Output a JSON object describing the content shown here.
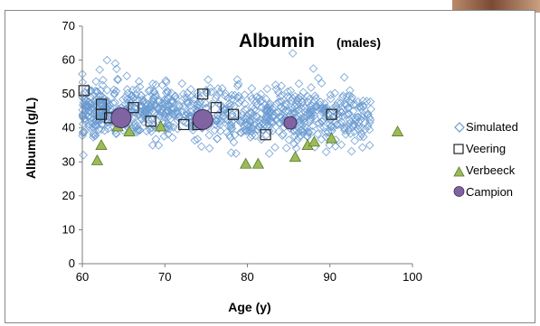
{
  "chart_data": {
    "type": "scatter",
    "title": "Albumin",
    "subtitle": "(males)",
    "xlabel": "Age (y)",
    "ylabel": "Albumin (g/L)",
    "xlim": [
      60,
      100
    ],
    "ylim": [
      0,
      70
    ],
    "x_ticks": [
      "60",
      "70",
      "80",
      "90",
      "100"
    ],
    "y_ticks": [
      "0",
      "10",
      "20",
      "30",
      "40",
      "50",
      "60",
      "70"
    ],
    "grid": false,
    "legend_position": "right",
    "series": [
      {
        "name": "Simulated",
        "marker": "diamond-open",
        "color": "#6a9bd1",
        "x_range": [
          60,
          95
        ],
        "y_mean": 45,
        "y_sd": 4,
        "y_range": [
          32,
          62
        ],
        "n_points_approx": 900,
        "highlight_points": {
          "x": [
            63,
            64,
            85.5,
            88
          ],
          "y": [
            60,
            59,
            62,
            57.5
          ]
        }
      },
      {
        "name": "Veering",
        "marker": "square-open",
        "color": "#222222",
        "x": [
          60.2,
          62.3,
          62.3,
          63.3,
          64.7,
          66.2,
          68.3,
          72.3,
          74.0,
          74.6,
          76.2,
          78.3,
          82.2,
          90.2
        ],
        "y": [
          51,
          47,
          44,
          43,
          43,
          46,
          42,
          41,
          41,
          50,
          46,
          44,
          38,
          44
        ]
      },
      {
        "name": "Verbeeck",
        "marker": "triangle",
        "color": "#9bbb59",
        "x": [
          61.8,
          62.3,
          64.3,
          65.7,
          69.5,
          79.8,
          81.3,
          85.8,
          87.3,
          88.1,
          90.2,
          98.2
        ],
        "y": [
          30.5,
          35,
          40.5,
          39,
          40.5,
          29.5,
          29.5,
          31.5,
          35,
          36,
          37,
          39
        ]
      },
      {
        "name": "Campion",
        "marker": "circle",
        "color": "#8064a2",
        "x": [
          64.7,
          74.6,
          85.2
        ],
        "y": [
          43,
          42.5,
          41.5
        ],
        "sizes": [
          11,
          11,
          7
        ]
      }
    ]
  }
}
